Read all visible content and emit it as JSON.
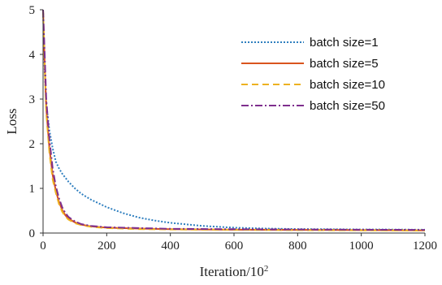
{
  "chart_data": {
    "type": "line",
    "title": "",
    "xlabel": "Iteration/10",
    "xlabel_superscript": "2",
    "ylabel": "Loss",
    "xlim": [
      0,
      1200
    ],
    "ylim": [
      0,
      5
    ],
    "xticks": [
      0,
      200,
      400,
      600,
      800,
      1000,
      1200
    ],
    "yticks": [
      0,
      1,
      2,
      3,
      4,
      5
    ],
    "grid": false,
    "legend_position": "top-right",
    "series": [
      {
        "name": "batch size=1",
        "color": "#2f7fbf",
        "style": "dotted",
        "points": [
          [
            0,
            5.0
          ],
          [
            5,
            3.6
          ],
          [
            10,
            2.9
          ],
          [
            20,
            2.3
          ],
          [
            30,
            1.9
          ],
          [
            40,
            1.6
          ],
          [
            50,
            1.45
          ],
          [
            60,
            1.33
          ],
          [
            80,
            1.15
          ],
          [
            100,
            1.0
          ],
          [
            120,
            0.88
          ],
          [
            150,
            0.75
          ],
          [
            200,
            0.58
          ],
          [
            250,
            0.45
          ],
          [
            300,
            0.35
          ],
          [
            350,
            0.28
          ],
          [
            400,
            0.23
          ],
          [
            500,
            0.16
          ],
          [
            600,
            0.12
          ],
          [
            700,
            0.1
          ],
          [
            800,
            0.09
          ],
          [
            900,
            0.085
          ],
          [
            1000,
            0.08
          ],
          [
            1100,
            0.078
          ],
          [
            1200,
            0.075
          ]
        ]
      },
      {
        "name": "batch size=5",
        "color": "#d9541e",
        "style": "solid",
        "points": [
          [
            0,
            5.0
          ],
          [
            5,
            3.8
          ],
          [
            10,
            2.8
          ],
          [
            20,
            1.9
          ],
          [
            30,
            1.3
          ],
          [
            40,
            0.95
          ],
          [
            50,
            0.7
          ],
          [
            60,
            0.52
          ],
          [
            70,
            0.4
          ],
          [
            80,
            0.32
          ],
          [
            100,
            0.24
          ],
          [
            120,
            0.19
          ],
          [
            150,
            0.15
          ],
          [
            200,
            0.12
          ],
          [
            300,
            0.1
          ],
          [
            400,
            0.085
          ],
          [
            600,
            0.075
          ],
          [
            800,
            0.07
          ],
          [
            1000,
            0.065
          ],
          [
            1200,
            0.06
          ]
        ]
      },
      {
        "name": "batch size=10",
        "color": "#edb120",
        "style": "dashed",
        "points": [
          [
            0,
            5.0
          ],
          [
            5,
            3.7
          ],
          [
            10,
            2.7
          ],
          [
            20,
            1.8
          ],
          [
            30,
            1.2
          ],
          [
            40,
            0.9
          ],
          [
            50,
            0.65
          ],
          [
            60,
            0.48
          ],
          [
            70,
            0.37
          ],
          [
            80,
            0.3
          ],
          [
            100,
            0.22
          ],
          [
            120,
            0.18
          ],
          [
            150,
            0.14
          ],
          [
            200,
            0.11
          ],
          [
            300,
            0.09
          ],
          [
            400,
            0.08
          ],
          [
            600,
            0.07
          ],
          [
            800,
            0.065
          ],
          [
            1000,
            0.06
          ],
          [
            1200,
            0.055
          ]
        ]
      },
      {
        "name": "batch size=50",
        "color": "#7e2f8e",
        "style": "dashdot",
        "points": [
          [
            0,
            5.0
          ],
          [
            5,
            4.0
          ],
          [
            10,
            3.0
          ],
          [
            20,
            2.1
          ],
          [
            30,
            1.45
          ],
          [
            40,
            1.05
          ],
          [
            50,
            0.78
          ],
          [
            60,
            0.58
          ],
          [
            70,
            0.45
          ],
          [
            80,
            0.36
          ],
          [
            100,
            0.26
          ],
          [
            120,
            0.2
          ],
          [
            150,
            0.16
          ],
          [
            200,
            0.13
          ],
          [
            300,
            0.11
          ],
          [
            400,
            0.095
          ],
          [
            600,
            0.085
          ],
          [
            800,
            0.08
          ],
          [
            1000,
            0.075
          ],
          [
            1200,
            0.07
          ]
        ]
      }
    ]
  }
}
